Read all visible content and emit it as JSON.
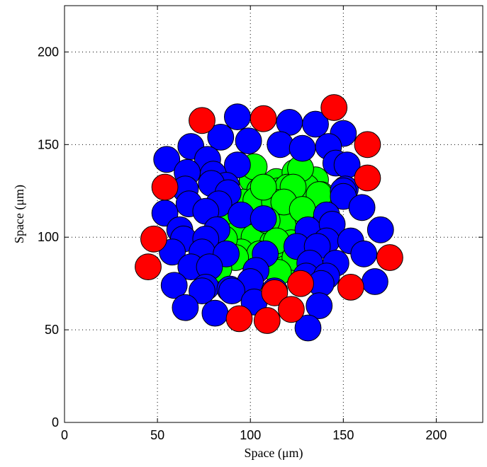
{
  "chart_data": {
    "type": "scatter",
    "xlabel": "Space (μm)",
    "ylabel": "Space (μm)",
    "xlim": [
      0,
      225
    ],
    "ylim": [
      0,
      225
    ],
    "xticks": [
      0,
      50,
      100,
      150,
      200
    ],
    "yticks": [
      0,
      50,
      100,
      150,
      200
    ],
    "grid": true,
    "marker": "circle",
    "marker_diameter": 14,
    "colors": {
      "red": "#ff0000",
      "blue": "#0000ff",
      "green": "#00ff00"
    },
    "series": [
      {
        "color": "green",
        "points": [
          [
            101,
            131
          ],
          [
            114,
            130
          ],
          [
            124,
            135
          ],
          [
            135,
            131
          ],
          [
            105,
            125
          ],
          [
            115,
            125
          ],
          [
            120,
            127
          ],
          [
            130,
            127
          ],
          [
            138,
            123
          ],
          [
            96,
            119
          ],
          [
            103,
            120
          ],
          [
            113,
            119
          ],
          [
            124,
            115
          ],
          [
            136,
            116
          ],
          [
            91,
            112
          ],
          [
            106,
            108
          ],
          [
            119,
            106
          ],
          [
            131,
            110
          ],
          [
            92,
            101
          ],
          [
            102,
            100
          ],
          [
            112,
            97
          ],
          [
            122,
            97
          ],
          [
            95,
            92
          ],
          [
            105,
            91
          ],
          [
            118,
            92
          ],
          [
            128,
            90
          ],
          [
            109,
            85
          ],
          [
            119,
            83
          ],
          [
            102,
            138
          ],
          [
            127,
            137
          ],
          [
            107,
            127
          ],
          [
            123,
            127
          ],
          [
            137,
            123
          ],
          [
            118,
            119
          ],
          [
            128,
            115
          ],
          [
            109,
            109
          ],
          [
            86,
            99
          ],
          [
            114,
            98
          ],
          [
            92,
            89
          ],
          [
            124,
            89
          ],
          [
            83,
            83
          ],
          [
            115,
            81
          ]
        ]
      },
      {
        "color": "blue",
        "points": [
          [
            93,
            165
          ],
          [
            121,
            162
          ],
          [
            135,
            161
          ],
          [
            84,
            154
          ],
          [
            150,
            156
          ],
          [
            68,
            149
          ],
          [
            99,
            152
          ],
          [
            116,
            150
          ],
          [
            128,
            148
          ],
          [
            142,
            149
          ],
          [
            55,
            142
          ],
          [
            77,
            142
          ],
          [
            93,
            139
          ],
          [
            146,
            140
          ],
          [
            152,
            139
          ],
          [
            66,
            135
          ],
          [
            80,
            134
          ],
          [
            87,
            128
          ],
          [
            151,
            126
          ],
          [
            65,
            126
          ],
          [
            79,
            129
          ],
          [
            88,
            124
          ],
          [
            150,
            125
          ],
          [
            67,
            118
          ],
          [
            83,
            118
          ],
          [
            150,
            122
          ],
          [
            54,
            113
          ],
          [
            76,
            114
          ],
          [
            95,
            112
          ],
          [
            107,
            110
          ],
          [
            141,
            112
          ],
          [
            160,
            116
          ],
          [
            62,
            104
          ],
          [
            82,
            104
          ],
          [
            131,
            104
          ],
          [
            144,
            107
          ],
          [
            64,
            99
          ],
          [
            76,
            99
          ],
          [
            141,
            98
          ],
          [
            154,
            98
          ],
          [
            170,
            104
          ],
          [
            58,
            92
          ],
          [
            74,
            92
          ],
          [
            87,
            91
          ],
          [
            108,
            91
          ],
          [
            125,
            95
          ],
          [
            136,
            95
          ],
          [
            161,
            91
          ],
          [
            68,
            84
          ],
          [
            78,
            84
          ],
          [
            103,
            82
          ],
          [
            132,
            86
          ],
          [
            146,
            86
          ],
          [
            59,
            74
          ],
          [
            76,
            73
          ],
          [
            89,
            72
          ],
          [
            100,
            76
          ],
          [
            130,
            79
          ],
          [
            141,
            79
          ],
          [
            167,
            76
          ],
          [
            74,
            71
          ],
          [
            90,
            71
          ],
          [
            113,
            71
          ],
          [
            138,
            75
          ],
          [
            65,
            62
          ],
          [
            81,
            59
          ],
          [
            102,
            65
          ],
          [
            137,
            63
          ],
          [
            131,
            51
          ]
        ]
      },
      {
        "color": "red",
        "points": [
          [
            145,
            170
          ],
          [
            74,
            163
          ],
          [
            107,
            164
          ],
          [
            163,
            150
          ],
          [
            163,
            132
          ],
          [
            54,
            127
          ],
          [
            48,
            99
          ],
          [
            175,
            89
          ],
          [
            45,
            84
          ],
          [
            113,
            70
          ],
          [
            127,
            75
          ],
          [
            154,
            73
          ],
          [
            122,
            61
          ],
          [
            94,
            56
          ],
          [
            109,
            55
          ]
        ]
      }
    ]
  }
}
